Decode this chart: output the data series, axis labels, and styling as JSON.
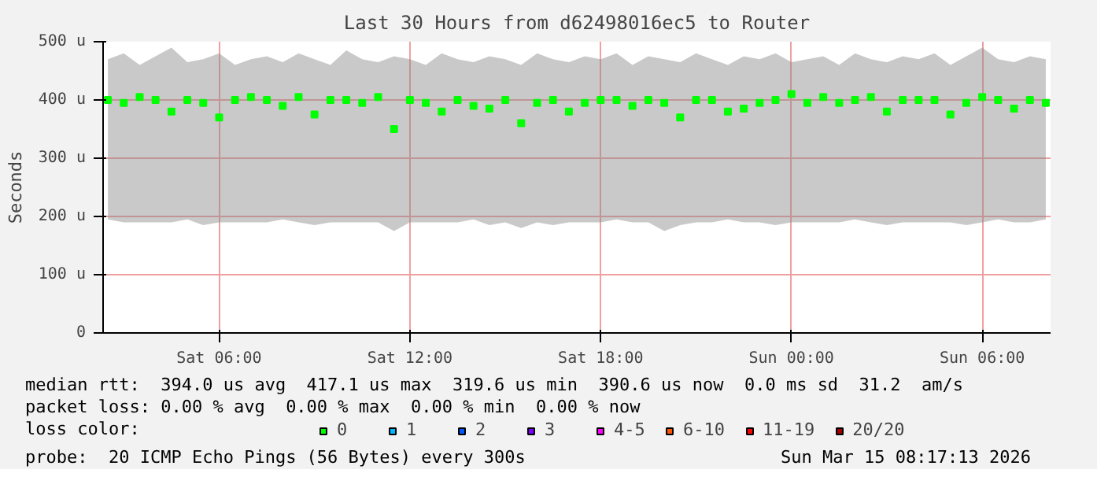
{
  "chart_data": {
    "type": "scatter",
    "title": "Last 30 Hours from d62498016ec5 to Router",
    "ylabel": "Seconds",
    "legend_title": "loss color:",
    "xlim": [
      "2026-03-14T02:21",
      "2026-03-15T08:09"
    ],
    "xticks": [
      {
        "value": "2026-03-14T06:00",
        "label": "Sat 06:00"
      },
      {
        "value": "2026-03-14T12:00",
        "label": "Sat 12:00"
      },
      {
        "value": "2026-03-14T18:00",
        "label": "Sat 18:00"
      },
      {
        "value": "2026-03-15T00:00",
        "label": "Sun 00:00"
      },
      {
        "value": "2026-03-15T06:00",
        "label": "Sun 06:00"
      }
    ],
    "ylim": [
      0,
      500
    ],
    "yticks": [
      {
        "value": 0,
        "label": "0"
      },
      {
        "value": 100,
        "label": "100 u"
      },
      {
        "value": 200,
        "label": "200 u"
      },
      {
        "value": 300,
        "label": "300 u"
      },
      {
        "value": 400,
        "label": "400 u"
      },
      {
        "value": 500,
        "label": "500 u"
      }
    ],
    "grid": true,
    "legend": "bottom",
    "marker": "square",
    "x": [
      "2026-03-14T02:30",
      "2026-03-14T03:00",
      "2026-03-14T03:30",
      "2026-03-14T04:00",
      "2026-03-14T04:30",
      "2026-03-14T05:00",
      "2026-03-14T05:30",
      "2026-03-14T06:00",
      "2026-03-14T06:30",
      "2026-03-14T07:00",
      "2026-03-14T07:30",
      "2026-03-14T08:00",
      "2026-03-14T08:30",
      "2026-03-14T09:00",
      "2026-03-14T09:30",
      "2026-03-14T10:00",
      "2026-03-14T10:30",
      "2026-03-14T11:00",
      "2026-03-14T11:30",
      "2026-03-14T12:00",
      "2026-03-14T12:30",
      "2026-03-14T13:00",
      "2026-03-14T13:30",
      "2026-03-14T14:00",
      "2026-03-14T14:30",
      "2026-03-14T15:00",
      "2026-03-14T15:30",
      "2026-03-14T16:00",
      "2026-03-14T16:30",
      "2026-03-14T17:00",
      "2026-03-14T17:30",
      "2026-03-14T18:00",
      "2026-03-14T18:30",
      "2026-03-14T19:00",
      "2026-03-14T19:30",
      "2026-03-14T20:00",
      "2026-03-14T20:30",
      "2026-03-14T21:00",
      "2026-03-14T21:30",
      "2026-03-14T22:00",
      "2026-03-14T22:30",
      "2026-03-14T23:00",
      "2026-03-14T23:30",
      "2026-03-15T00:00",
      "2026-03-15T00:30",
      "2026-03-15T01:00",
      "2026-03-15T01:30",
      "2026-03-15T02:00",
      "2026-03-15T02:30",
      "2026-03-15T03:00",
      "2026-03-15T03:30",
      "2026-03-15T04:00",
      "2026-03-15T04:30",
      "2026-03-15T05:00",
      "2026-03-15T05:30",
      "2026-03-15T06:00",
      "2026-03-15T06:30",
      "2026-03-15T07:00",
      "2026-03-15T07:30",
      "2026-03-15T08:00"
    ],
    "series": [
      {
        "name": "0",
        "color": "#00ff00",
        "values": [
          400,
          395,
          405,
          400,
          380,
          400,
          395,
          370,
          400,
          405,
          400,
          390,
          405,
          375,
          400,
          400,
          395,
          405,
          350,
          400,
          395,
          380,
          400,
          390,
          385,
          400,
          360,
          395,
          400,
          380,
          395,
          400,
          400,
          390,
          400,
          395,
          370,
          400,
          400,
          380,
          385,
          395,
          400,
          410,
          395,
          405,
          395,
          400,
          405,
          380,
          400,
          400,
          400,
          375,
          395,
          405,
          400,
          385,
          400,
          395
        ],
        "lower": [
          195,
          190,
          190,
          190,
          190,
          195,
          185,
          190,
          190,
          190,
          190,
          195,
          190,
          185,
          190,
          190,
          190,
          190,
          175,
          190,
          190,
          190,
          190,
          195,
          185,
          190,
          180,
          190,
          185,
          190,
          190,
          190,
          195,
          190,
          190,
          175,
          185,
          190,
          190,
          195,
          190,
          190,
          185,
          190,
          190,
          190,
          190,
          195,
          190,
          185,
          190,
          190,
          190,
          190,
          185,
          190,
          195,
          190,
          190,
          195
        ],
        "upper": [
          470,
          480,
          460,
          475,
          490,
          465,
          470,
          480,
          460,
          470,
          475,
          465,
          480,
          470,
          460,
          485,
          470,
          465,
          475,
          470,
          460,
          480,
          470,
          465,
          475,
          470,
          460,
          480,
          470,
          465,
          475,
          470,
          480,
          460,
          475,
          470,
          465,
          480,
          470,
          460,
          475,
          470,
          480,
          465,
          470,
          475,
          460,
          480,
          470,
          465,
          475,
          470,
          480,
          460,
          475,
          490,
          470,
          465,
          475,
          470
        ]
      },
      {
        "name": "1",
        "color": "#00b8ff",
        "values": [
          null,
          null,
          null,
          null,
          null,
          null,
          null,
          null,
          null,
          null,
          null,
          null,
          null,
          null,
          null,
          null,
          null,
          null,
          null,
          null,
          null,
          null,
          null,
          null,
          null,
          null,
          null,
          null,
          null,
          null,
          null,
          null,
          null,
          null,
          null,
          null,
          null,
          null,
          null,
          null,
          null,
          null,
          null,
          null,
          null,
          null,
          null,
          null,
          null,
          null,
          null,
          null,
          null,
          null,
          null,
          null,
          null,
          null,
          null,
          null
        ]
      },
      {
        "name": "2",
        "color": "#0059ff",
        "values": [
          null,
          null,
          null,
          null,
          null,
          null,
          null,
          null,
          null,
          null,
          null,
          null,
          null,
          null,
          null,
          null,
          null,
          null,
          null,
          null,
          null,
          null,
          null,
          null,
          null,
          null,
          null,
          null,
          null,
          null,
          null,
          null,
          null,
          null,
          null,
          null,
          null,
          null,
          null,
          null,
          null,
          null,
          null,
          null,
          null,
          null,
          null,
          null,
          null,
          null,
          null,
          null,
          null,
          null,
          null,
          null,
          null,
          null,
          null,
          null
        ]
      },
      {
        "name": "3",
        "color": "#7e00ff",
        "values": [
          null,
          null,
          null,
          null,
          null,
          null,
          null,
          null,
          null,
          null,
          null,
          null,
          null,
          null,
          null,
          null,
          null,
          null,
          null,
          null,
          null,
          null,
          null,
          null,
          null,
          null,
          null,
          null,
          null,
          null,
          null,
          null,
          null,
          null,
          null,
          null,
          null,
          null,
          null,
          null,
          null,
          null,
          null,
          null,
          null,
          null,
          null,
          null,
          null,
          null,
          null,
          null,
          null,
          null,
          null,
          null,
          null,
          null,
          null,
          null
        ]
      },
      {
        "name": "4-5",
        "color": "#ff00ff",
        "values": [
          null,
          null,
          null,
          null,
          null,
          null,
          null,
          null,
          null,
          null,
          null,
          null,
          null,
          null,
          null,
          null,
          null,
          null,
          null,
          null,
          null,
          null,
          null,
          null,
          null,
          null,
          null,
          null,
          null,
          null,
          null,
          null,
          null,
          null,
          null,
          null,
          null,
          null,
          null,
          null,
          null,
          null,
          null,
          null,
          null,
          null,
          null,
          null,
          null,
          null,
          null,
          null,
          null,
          null,
          null,
          null,
          null,
          null,
          null,
          null
        ]
      },
      {
        "name": "6-10",
        "color": "#ff5500",
        "values": [
          null,
          null,
          null,
          null,
          null,
          null,
          null,
          null,
          null,
          null,
          null,
          null,
          null,
          null,
          null,
          null,
          null,
          null,
          null,
          null,
          null,
          null,
          null,
          null,
          null,
          null,
          null,
          null,
          null,
          null,
          null,
          null,
          null,
          null,
          null,
          null,
          null,
          null,
          null,
          null,
          null,
          null,
          null,
          null,
          null,
          null,
          null,
          null,
          null,
          null,
          null,
          null,
          null,
          null,
          null,
          null,
          null,
          null,
          null,
          null
        ]
      },
      {
        "name": "11-19",
        "color": "#ff0000",
        "values": [
          null,
          null,
          null,
          null,
          null,
          null,
          null,
          null,
          null,
          null,
          null,
          null,
          null,
          null,
          null,
          null,
          null,
          null,
          null,
          null,
          null,
          null,
          null,
          null,
          null,
          null,
          null,
          null,
          null,
          null,
          null,
          null,
          null,
          null,
          null,
          null,
          null,
          null,
          null,
          null,
          null,
          null,
          null,
          null,
          null,
          null,
          null,
          null,
          null,
          null,
          null,
          null,
          null,
          null,
          null,
          null,
          null,
          null,
          null,
          null
        ]
      },
      {
        "name": "20/20",
        "color": "#a10000",
        "values": [
          null,
          null,
          null,
          null,
          null,
          null,
          null,
          null,
          null,
          null,
          null,
          null,
          null,
          null,
          null,
          null,
          null,
          null,
          null,
          null,
          null,
          null,
          null,
          null,
          null,
          null,
          null,
          null,
          null,
          null,
          null,
          null,
          null,
          null,
          null,
          null,
          null,
          null,
          null,
          null,
          null,
          null,
          null,
          null,
          null,
          null,
          null,
          null,
          null,
          null,
          null,
          null,
          null,
          null,
          null,
          null,
          null,
          null,
          null,
          null
        ]
      }
    ],
    "annotations": [
      "median rtt:  394.0 us avg  417.1 us max  319.6 us min  390.6 us now  0.0 ms sd  31.2  am/s",
      "packet loss: 0.00 % avg  0.00 % max  0.00 % min  0.00 % now",
      "probe:  20 ICMP Echo Pings (56 Bytes) every 300s",
      "Sun Mar 15 08:17:13 2026"
    ]
  }
}
